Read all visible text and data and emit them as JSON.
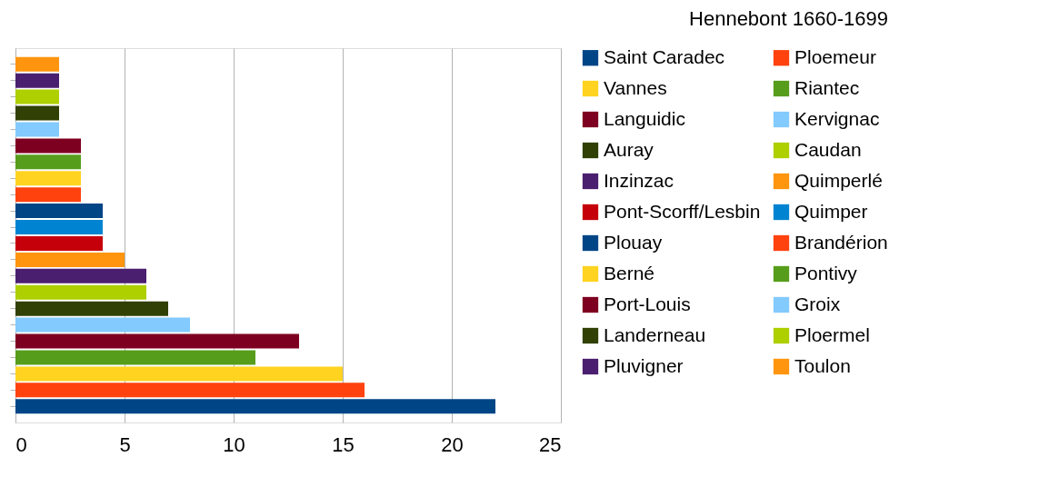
{
  "chart_data": {
    "type": "bar",
    "title": "Hennebont 1660-1699",
    "orientation": "horizontal",
    "categories": [
      null,
      null,
      null,
      null,
      null,
      null,
      null,
      null,
      null,
      null,
      null,
      null,
      null,
      null,
      null,
      null,
      null,
      null,
      null,
      null,
      null,
      null
    ],
    "series": [
      {
        "name": "Saint Caradec",
        "color": "#004586",
        "values": [
          null,
          null,
          null,
          null,
          null,
          null,
          null,
          null,
          null,
          null,
          null,
          null,
          null,
          null,
          null,
          null,
          null,
          null,
          null,
          null,
          null,
          22
        ]
      },
      {
        "name": "Ploemeur",
        "color": "#ff420e",
        "values": [
          null,
          null,
          null,
          null,
          null,
          null,
          null,
          null,
          null,
          null,
          null,
          null,
          null,
          null,
          null,
          null,
          null,
          null,
          null,
          null,
          16,
          null
        ]
      },
      {
        "name": "Vannes",
        "color": "#ffd320",
        "values": [
          null,
          null,
          null,
          null,
          null,
          null,
          null,
          null,
          null,
          null,
          null,
          null,
          null,
          null,
          null,
          null,
          null,
          null,
          null,
          15,
          null,
          null
        ]
      },
      {
        "name": "Riantec",
        "color": "#579d1c",
        "values": [
          null,
          null,
          null,
          null,
          null,
          null,
          null,
          null,
          null,
          null,
          null,
          null,
          null,
          null,
          null,
          null,
          null,
          null,
          11,
          null,
          null,
          null
        ]
      },
      {
        "name": "Languidic",
        "color": "#7e0021",
        "values": [
          null,
          null,
          null,
          null,
          null,
          null,
          null,
          null,
          null,
          null,
          null,
          null,
          null,
          null,
          null,
          null,
          null,
          13,
          null,
          null,
          null,
          null
        ]
      },
      {
        "name": "Kervignac",
        "color": "#83caff",
        "values": [
          null,
          null,
          null,
          null,
          null,
          null,
          null,
          null,
          null,
          null,
          null,
          null,
          null,
          null,
          null,
          null,
          8,
          null,
          null,
          null,
          null,
          null
        ]
      },
      {
        "name": "Auray",
        "color": "#314004",
        "values": [
          null,
          null,
          null,
          null,
          null,
          null,
          null,
          null,
          null,
          null,
          null,
          null,
          null,
          null,
          null,
          7,
          null,
          null,
          null,
          null,
          null,
          null
        ]
      },
      {
        "name": "Caudan",
        "color": "#aecf00",
        "values": [
          null,
          null,
          null,
          null,
          null,
          null,
          null,
          null,
          null,
          null,
          null,
          null,
          null,
          null,
          6,
          null,
          null,
          null,
          null,
          null,
          null,
          null
        ]
      },
      {
        "name": "Inzinzac",
        "color": "#4b1f6f",
        "values": [
          null,
          null,
          null,
          null,
          null,
          null,
          null,
          null,
          null,
          null,
          null,
          null,
          null,
          6,
          null,
          null,
          null,
          null,
          null,
          null,
          null,
          null
        ]
      },
      {
        "name": "Quimperlé",
        "color": "#ff950e",
        "values": [
          null,
          null,
          null,
          null,
          null,
          null,
          null,
          null,
          null,
          null,
          null,
          null,
          5,
          null,
          null,
          null,
          null,
          null,
          null,
          null,
          null,
          null
        ]
      },
      {
        "name": "Pont-Scorff/Lesbin",
        "color": "#c5000b",
        "values": [
          null,
          null,
          null,
          null,
          null,
          null,
          null,
          null,
          null,
          null,
          null,
          4,
          null,
          null,
          null,
          null,
          null,
          null,
          null,
          null,
          null,
          null
        ]
      },
      {
        "name": "Quimper",
        "color": "#0084d1",
        "values": [
          null,
          null,
          null,
          null,
          null,
          null,
          null,
          null,
          null,
          null,
          4,
          null,
          null,
          null,
          null,
          null,
          null,
          null,
          null,
          null,
          null,
          null
        ]
      },
      {
        "name": "Plouay",
        "color": "#004586",
        "values": [
          null,
          null,
          null,
          null,
          null,
          null,
          null,
          null,
          null,
          4,
          null,
          null,
          null,
          null,
          null,
          null,
          null,
          null,
          null,
          null,
          null,
          null
        ]
      },
      {
        "name": "Brandérion",
        "color": "#ff420e",
        "values": [
          null,
          null,
          null,
          null,
          null,
          null,
          null,
          null,
          3,
          null,
          null,
          null,
          null,
          null,
          null,
          null,
          null,
          null,
          null,
          null,
          null,
          null
        ]
      },
      {
        "name": "Berné",
        "color": "#ffd320",
        "values": [
          null,
          null,
          null,
          null,
          null,
          null,
          null,
          3,
          null,
          null,
          null,
          null,
          null,
          null,
          null,
          null,
          null,
          null,
          null,
          null,
          null,
          null
        ]
      },
      {
        "name": "Pontivy",
        "color": "#579d1c",
        "values": [
          null,
          null,
          null,
          null,
          null,
          null,
          3,
          null,
          null,
          null,
          null,
          null,
          null,
          null,
          null,
          null,
          null,
          null,
          null,
          null,
          null,
          null
        ]
      },
      {
        "name": "Port-Louis",
        "color": "#7e0021",
        "values": [
          null,
          null,
          null,
          null,
          null,
          3,
          null,
          null,
          null,
          null,
          null,
          null,
          null,
          null,
          null,
          null,
          null,
          null,
          null,
          null,
          null,
          null
        ]
      },
      {
        "name": "Groix",
        "color": "#83caff",
        "values": [
          null,
          null,
          null,
          null,
          2,
          null,
          null,
          null,
          null,
          null,
          null,
          null,
          null,
          null,
          null,
          null,
          null,
          null,
          null,
          null,
          null,
          null
        ]
      },
      {
        "name": "Landerneau",
        "color": "#314004",
        "values": [
          null,
          null,
          null,
          2,
          null,
          null,
          null,
          null,
          null,
          null,
          null,
          null,
          null,
          null,
          null,
          null,
          null,
          null,
          null,
          null,
          null,
          null
        ]
      },
      {
        "name": "Ploermel",
        "color": "#aecf00",
        "values": [
          null,
          null,
          2,
          null,
          null,
          null,
          null,
          null,
          null,
          null,
          null,
          null,
          null,
          null,
          null,
          null,
          null,
          null,
          null,
          null,
          null,
          null
        ]
      },
      {
        "name": "Pluvigner",
        "color": "#4b1f6f",
        "values": [
          null,
          2,
          null,
          null,
          null,
          null,
          null,
          null,
          null,
          null,
          null,
          null,
          null,
          null,
          null,
          null,
          null,
          null,
          null,
          null,
          null,
          null
        ]
      },
      {
        "name": "Toulon",
        "color": "#ff950e",
        "values": [
          2,
          null,
          null,
          null,
          null,
          null,
          null,
          null,
          null,
          null,
          null,
          null,
          null,
          null,
          null,
          null,
          null,
          null,
          null,
          null,
          null,
          null
        ]
      }
    ],
    "xlim": [
      0,
      25
    ],
    "xticks": [
      0,
      5,
      10,
      15,
      20,
      25
    ],
    "grid": "x",
    "legend": "right",
    "tick_labels": "x"
  }
}
